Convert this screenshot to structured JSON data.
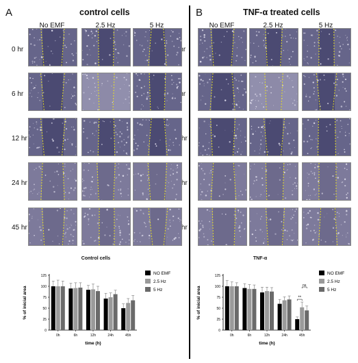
{
  "panels": [
    {
      "letter": "A",
      "title": "control cells",
      "columns": [
        "No EMF",
        "2.5 Hz",
        "5 Hz"
      ]
    },
    {
      "letter": "B",
      "title": "TNF-α treated cells",
      "columns": [
        "No EMF",
        "2.5 Hz",
        "5 Hz"
      ]
    }
  ],
  "rows": [
    "0 hr",
    "6 hr",
    "12 hr",
    "24 hr",
    "45 hr"
  ],
  "colors": {
    "tile_dark": "#4b4a72",
    "tile_mid": "#6d6a8c",
    "tile_light": "#8d8aa8",
    "wound_line": "#e8e024",
    "bar_noemf": "#000000",
    "bar_25": "#9a9a9a",
    "bar_5": "#6a6a6a"
  },
  "chart_data": [
    {
      "type": "bar",
      "title": "Control cells",
      "xlabel": "time (h)",
      "ylabel": "% of inicial area",
      "ylim": [
        0,
        125
      ],
      "yticks": [
        0,
        25,
        50,
        75,
        100,
        125
      ],
      "categories": [
        "0h",
        "6h",
        "12h",
        "24h",
        "45h"
      ],
      "legend_position": "right",
      "series": [
        {
          "name": "NO EMF",
          "values": [
            100,
            95,
            92,
            72,
            50
          ],
          "errors": [
            12,
            12,
            10,
            12,
            10
          ]
        },
        {
          "name": "2.5 Hz",
          "values": [
            100,
            96,
            93,
            75,
            62
          ],
          "errors": [
            14,
            12,
            12,
            10,
            10
          ]
        },
        {
          "name": "5 Hz",
          "values": [
            100,
            97,
            89,
            82,
            68
          ],
          "errors": [
            12,
            11,
            11,
            9,
            11
          ]
        }
      ]
    },
    {
      "type": "bar",
      "title": "TNF-α",
      "xlabel": "time (h)",
      "ylabel": "% of inicial area",
      "ylim": [
        0,
        125
      ],
      "yticks": [
        0,
        25,
        50,
        75,
        100,
        125
      ],
      "categories": [
        "0h",
        "6h",
        "12h",
        "24h",
        "45h"
      ],
      "legend_position": "right",
      "annotations": [
        "**",
        "ns"
      ],
      "series": [
        {
          "name": "NO EMF",
          "values": [
            100,
            96,
            86,
            60,
            25
          ],
          "errors": [
            13,
            10,
            12,
            10,
            5
          ]
        },
        {
          "name": "2.5 Hz",
          "values": [
            100,
            94,
            89,
            68,
            52
          ],
          "errors": [
            10,
            10,
            9,
            8,
            12
          ]
        },
        {
          "name": "5 Hz",
          "values": [
            100,
            94,
            88,
            70,
            45
          ],
          "errors": [
            8,
            9,
            9,
            8,
            10
          ]
        }
      ]
    }
  ]
}
